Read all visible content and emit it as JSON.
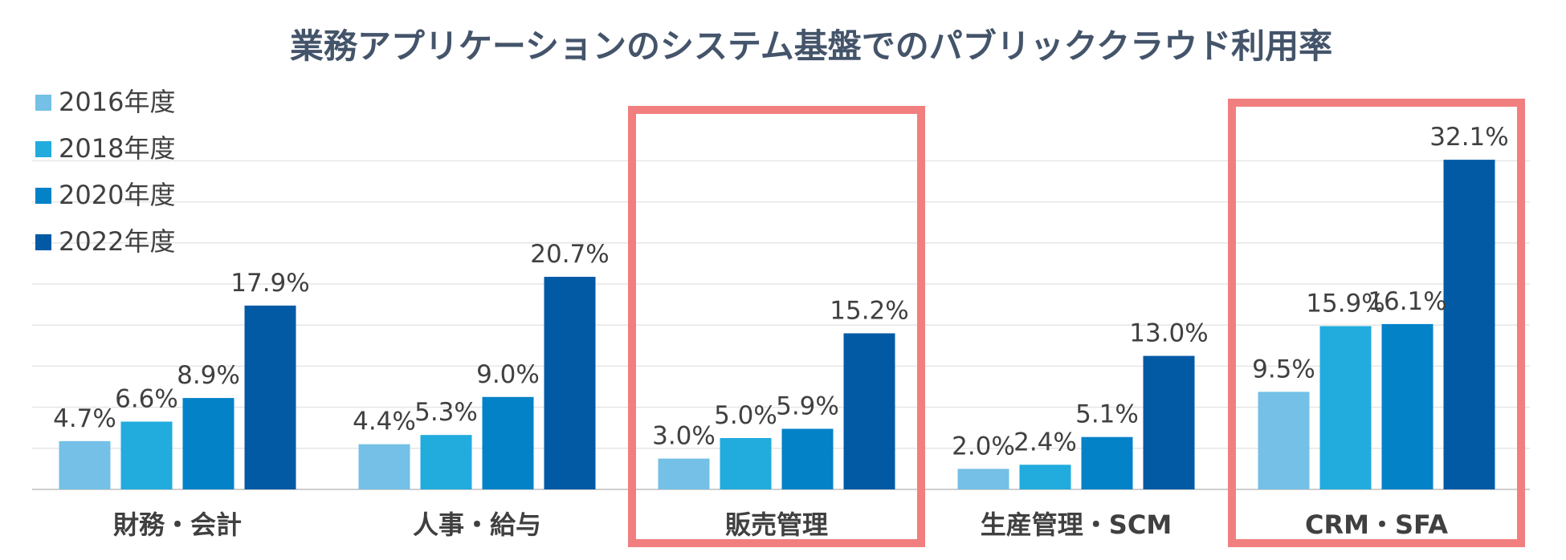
{
  "chart_data": {
    "type": "bar",
    "title": "業務アプリケーションのシステム基盤でのパブリッククラウド利用率",
    "xlabel": "",
    "ylabel": "",
    "ylim": [
      0,
      35
    ],
    "grid": true,
    "legend_position": "top-left",
    "categories": [
      "財務・会計",
      "人事・給与",
      "販売管理",
      "生産管理・SCM",
      "CRM・SFA"
    ],
    "series": [
      {
        "name": "2016年度",
        "color": "#74c0e6",
        "values": [
          4.7,
          4.4,
          3.0,
          2.0,
          9.5
        ],
        "labels": [
          "4.7%",
          "4.4%",
          "3.0%",
          "2.0%",
          "9.5%"
        ]
      },
      {
        "name": "2018年度",
        "color": "#22abdd",
        "values": [
          6.6,
          5.3,
          5.0,
          2.4,
          15.9
        ],
        "labels": [
          "6.6%",
          "5.3%",
          "5.0%",
          "2.4%",
          "15.9%"
        ]
      },
      {
        "name": "2020年度",
        "color": "#0482c8",
        "values": [
          8.9,
          9.0,
          5.9,
          5.1,
          16.1
        ],
        "labels": [
          "8.9%",
          "9.0%",
          "5.9%",
          "5.1%",
          "16.1%"
        ]
      },
      {
        "name": "2022年度",
        "color": "#025aa5",
        "values": [
          17.9,
          20.7,
          15.2,
          13.0,
          32.1
        ],
        "labels": [
          "17.9%",
          "20.7%",
          "15.2%",
          "13.0%",
          "32.1%"
        ]
      }
    ],
    "highlighted_categories": [
      "販売管理",
      "CRM・SFA"
    ],
    "highlight_color": "#f27f7f"
  }
}
